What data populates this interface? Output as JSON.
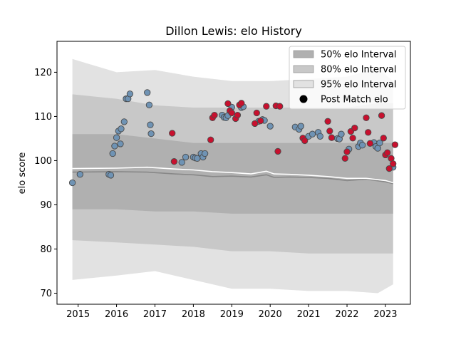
{
  "chart_data": {
    "type": "scatter",
    "title": "Dillon Lewis: elo History",
    "xlabel": "",
    "ylabel": "elo score",
    "xlim": [
      2014.45,
      2023.65
    ],
    "ylim": [
      67.5,
      127
    ],
    "x_ticks": [
      2015,
      2016,
      2017,
      2018,
      2019,
      2020,
      2021,
      2022,
      2023
    ],
    "x_tick_labels": [
      "2015",
      "2016",
      "2017",
      "2018",
      "2019",
      "2020",
      "2021",
      "2022",
      "2023"
    ],
    "y_ticks": [
      70,
      80,
      90,
      100,
      110,
      120
    ],
    "y_tick_labels": [
      "70",
      "80",
      "90",
      "100",
      "110",
      "120"
    ],
    "grid": false,
    "legend_position": "top-right",
    "legend": [
      {
        "label": "50% elo Interval",
        "kind": "band",
        "color": "#b0b0b0"
      },
      {
        "label": "80% elo Interval",
        "kind": "band",
        "color": "#c8c8c8"
      },
      {
        "label": "95% elo Interval",
        "kind": "band",
        "color": "#e2e2e2"
      },
      {
        "label": "Post Match elo",
        "kind": "dot",
        "color": "#000000"
      }
    ],
    "colors": {
      "band50": "#b0b0b0",
      "band80": "#c8c8c8",
      "band95": "#e2e2e2",
      "median_line": "#888888",
      "mean_line": "#ffffff",
      "point_blue": "#6f93b4",
      "point_red": "#c8102e",
      "point_edge": "#4a4a4a"
    },
    "bands": {
      "x": [
        2014.85,
        2016.0,
        2017.0,
        2018.0,
        2019.0,
        2020.0,
        2021.0,
        2022.0,
        2022.8,
        2023.2
      ],
      "band95_upper": [
        123,
        120,
        120.5,
        119,
        118,
        118,
        118.5,
        119,
        121,
        118
      ],
      "band95_lower": [
        73,
        74,
        75,
        73,
        71,
        71,
        70.5,
        70.5,
        70,
        72
      ],
      "band80_upper": [
        115,
        114,
        112.5,
        112,
        112,
        112,
        112,
        112,
        113,
        113
      ],
      "band80_lower": [
        82,
        81.5,
        81,
        80.5,
        79.5,
        79.5,
        79,
        79,
        79,
        79
      ],
      "band50_upper": [
        106,
        106,
        105,
        104,
        104,
        104,
        104,
        104,
        104,
        104
      ],
      "band50_lower": [
        89,
        89,
        88.5,
        88.5,
        88,
        88,
        88,
        88,
        88,
        88
      ]
    },
    "series": [
      {
        "kind": "line",
        "color": "#888888",
        "x": [
          2014.85,
          2016.0,
          2016.8,
          2017.5,
          2018.0,
          2018.5,
          2019.0,
          2019.5,
          2019.9,
          2020.1,
          2020.5,
          2021.0,
          2021.5,
          2022.0,
          2022.5,
          2023.0,
          2023.2
        ],
        "values": [
          97.4,
          97.5,
          97.4,
          97.0,
          96.8,
          96.4,
          96.5,
          96.3,
          96.8,
          96.2,
          96.3,
          96.2,
          96.0,
          95.5,
          95.8,
          95.2,
          94.8
        ]
      },
      {
        "kind": "line",
        "color": "#ffffff",
        "x": [
          2014.85,
          2016.0,
          2016.8,
          2017.5,
          2018.0,
          2018.5,
          2019.0,
          2019.5,
          2019.9,
          2020.1,
          2020.5,
          2021.0,
          2021.5,
          2022.0,
          2022.5,
          2023.0,
          2023.2
        ],
        "values": [
          98.2,
          98.3,
          98.5,
          98.1,
          97.9,
          97.5,
          97.3,
          97.0,
          97.6,
          97.0,
          96.9,
          96.7,
          96.4,
          96.0,
          96.0,
          95.5,
          95.0
        ]
      },
      {
        "kind": "points",
        "color": "#6f93b4",
        "x": [
          2014.85,
          2015.05,
          2015.8,
          2015.85,
          2015.9,
          2015.95,
          2016.0,
          2016.05,
          2016.1,
          2016.12,
          2016.2,
          2016.25,
          2016.3,
          2016.35,
          2016.8,
          2016.85,
          2016.88,
          2016.9,
          2017.7,
          2017.8,
          2018.0,
          2018.05,
          2018.1,
          2018.2,
          2018.25,
          2018.3,
          2018.75,
          2018.8,
          2018.85,
          2018.9,
          2019.0,
          2019.25,
          2019.3,
          2019.7,
          2019.8,
          2019.85,
          2020.0,
          2020.65,
          2020.75,
          2020.8,
          2021.0,
          2021.1,
          2021.25,
          2021.3,
          2021.75,
          2021.8,
          2021.85,
          2022.05,
          2022.3,
          2022.35,
          2022.4,
          2022.7,
          2022.75,
          2022.8,
          2022.85,
          2023.2
        ],
        "values": [
          95.0,
          96.9,
          96.9,
          96.7,
          101.6,
          103.3,
          105.2,
          106.7,
          103.8,
          107.2,
          108.8,
          114.0,
          114.0,
          115.1,
          115.4,
          112.6,
          108.1,
          106.1,
          99.6,
          100.8,
          100.8,
          100.6,
          100.5,
          101.6,
          100.8,
          101.6,
          110.3,
          109.8,
          109.7,
          110.2,
          112.1,
          112.0,
          112.2,
          108.9,
          109.3,
          109.1,
          107.8,
          107.6,
          107.1,
          107.8,
          105.5,
          106.0,
          106.4,
          105.5,
          105.0,
          104.9,
          106.0,
          102.6,
          103.2,
          104.0,
          103.5,
          104.1,
          103.2,
          102.8,
          104.0,
          98.5
        ]
      },
      {
        "kind": "points",
        "color": "#c8102e",
        "x": [
          2017.45,
          2017.5,
          2018.45,
          2018.5,
          2018.55,
          2018.9,
          2018.95,
          2019.0,
          2019.1,
          2019.15,
          2019.2,
          2019.25,
          2019.6,
          2019.65,
          2019.75,
          2019.9,
          2020.15,
          2020.2,
          2020.25,
          2020.85,
          2020.9,
          2021.5,
          2021.55,
          2021.6,
          2021.95,
          2022.0,
          2022.1,
          2022.15,
          2022.2,
          2022.5,
          2022.55,
          2022.6,
          2022.9,
          2022.95,
          2023.0,
          2023.05,
          2023.1,
          2023.15,
          2023.2,
          2023.25
        ],
        "values": [
          106.2,
          99.8,
          104.7,
          109.7,
          110.3,
          112.9,
          111.3,
          110.8,
          109.5,
          110.3,
          112.6,
          113.0,
          108.4,
          110.8,
          109.0,
          112.3,
          112.4,
          102.1,
          112.3,
          105.1,
          104.5,
          108.9,
          106.7,
          105.2,
          100.5,
          102.0,
          106.6,
          105.1,
          107.4,
          109.7,
          106.4,
          103.9,
          110.2,
          105.1,
          101.3,
          101.8,
          98.2,
          100.5,
          99.3,
          103.6
        ]
      }
    ]
  }
}
